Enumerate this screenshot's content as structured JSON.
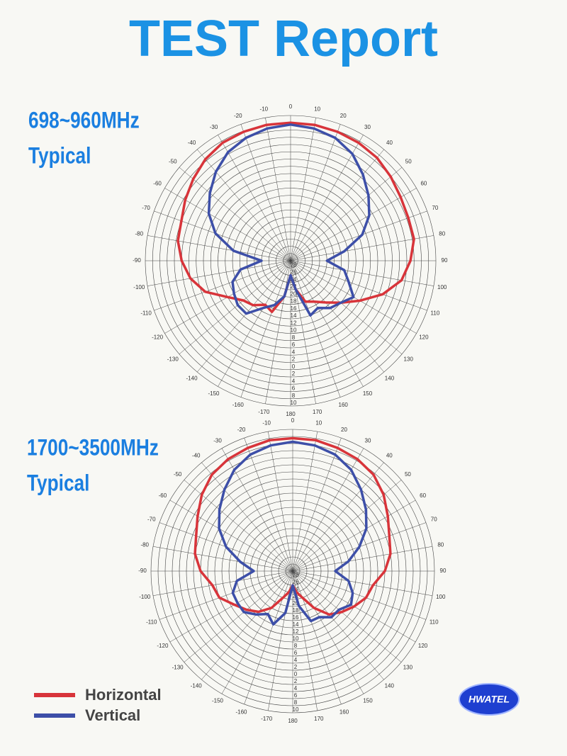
{
  "title": "TEST Report",
  "logo": "HWATEL",
  "chart_data": [
    {
      "type": "polar",
      "title": "698~960MHz",
      "subtitle": "Typical",
      "x": [
        -170,
        -160,
        -150,
        -140,
        -130,
        -120,
        -110,
        -100,
        -90,
        -80,
        -70,
        -60,
        -50,
        -40,
        -30,
        -20,
        -10,
        0,
        10,
        20,
        30,
        40,
        50,
        60,
        70,
        80,
        90,
        100,
        110,
        120,
        130,
        140,
        150,
        160,
        170,
        180
      ],
      "xticks": [
        -170,
        -160,
        -150,
        -140,
        -130,
        -120,
        -110,
        -100,
        -90,
        -80,
        -70,
        -60,
        -50,
        -40,
        -30,
        -20,
        -10,
        0,
        10,
        20,
        30,
        40,
        50,
        60,
        70,
        80,
        90,
        100,
        110,
        120,
        130,
        140,
        150,
        160,
        170,
        180
      ],
      "ylim": [
        -30,
        10
      ],
      "yticks": [
        {
          "value": -28,
          "label": "28"
        },
        {
          "value": -26,
          "label": "26"
        },
        {
          "value": -24,
          "label": "24"
        },
        {
          "value": -22,
          "label": "22"
        },
        {
          "value": -20,
          "label": "20"
        },
        {
          "value": -18,
          "label": "18"
        },
        {
          "value": -16,
          "label": "16"
        },
        {
          "value": -14,
          "label": "14"
        },
        {
          "value": -12,
          "label": "12"
        },
        {
          "value": -10,
          "label": "10"
        },
        {
          "value": -8,
          "label": "8"
        },
        {
          "value": -6,
          "label": "6"
        },
        {
          "value": -4,
          "label": "4"
        },
        {
          "value": -2,
          "label": "2"
        },
        0,
        2,
        4,
        6,
        8,
        10
      ],
      "series": [
        {
          "name": "Horizontal",
          "color": "#d8343a",
          "values": [
            -20,
            -15,
            -16,
            -14,
            -13,
            -10,
            -5,
            -2,
            0,
            1.5,
            2,
            3.5,
            5,
            6.5,
            7.5,
            7.8,
            8,
            8,
            8,
            7.8,
            7.5,
            7,
            6,
            5,
            4.5,
            4.5,
            3,
            1,
            -3,
            -8,
            -12,
            -15,
            -17,
            -18,
            -22,
            -26
          ]
        },
        {
          "name": "Vertical",
          "color": "#3d4fa8",
          "values": [
            -20,
            -17,
            -15,
            -11,
            -11,
            -12,
            -13,
            -16,
            -22,
            -14,
            -8,
            -4,
            -1,
            2,
            4.5,
            6,
            7,
            7.5,
            7,
            6,
            4,
            1,
            -2,
            -5,
            -9,
            -15,
            -20,
            -15,
            -13,
            -10,
            -12,
            -13,
            -15,
            -14,
            -22,
            -26
          ]
        }
      ]
    },
    {
      "type": "polar",
      "title": "1700~3500MHz",
      "subtitle": "Typical",
      "x": [
        -170,
        -160,
        -150,
        -140,
        -130,
        -120,
        -110,
        -100,
        -90,
        -80,
        -70,
        -60,
        -50,
        -40,
        -30,
        -20,
        -10,
        0,
        10,
        20,
        30,
        40,
        50,
        60,
        70,
        80,
        90,
        100,
        110,
        120,
        130,
        140,
        150,
        160,
        170,
        180
      ],
      "xticks": [
        -170,
        -160,
        -150,
        -140,
        -130,
        -120,
        -110,
        -100,
        -90,
        -80,
        -70,
        -60,
        -50,
        -40,
        -30,
        -20,
        -10,
        0,
        10,
        20,
        30,
        40,
        50,
        60,
        70,
        80,
        90,
        100,
        110,
        120,
        130,
        140,
        150,
        160,
        170,
        180
      ],
      "ylim": [
        -30,
        10
      ],
      "yticks": [
        {
          "value": -28,
          "label": "28"
        },
        {
          "value": -26,
          "label": "26"
        },
        {
          "value": -24,
          "label": "24"
        },
        {
          "value": -22,
          "label": "22"
        },
        {
          "value": -20,
          "label": "20"
        },
        {
          "value": -18,
          "label": "18"
        },
        {
          "value": -16,
          "label": "16"
        },
        {
          "value": -14,
          "label": "14"
        },
        {
          "value": -12,
          "label": "12"
        },
        {
          "value": -10,
          "label": "10"
        },
        {
          "value": -8,
          "label": "8"
        },
        {
          "value": -6,
          "label": "6"
        },
        {
          "value": -4,
          "label": "4"
        },
        {
          "value": -2,
          "label": "2"
        },
        0,
        2,
        4,
        6,
        8,
        10
      ],
      "series": [
        {
          "color": "#d8343a",
          "values": [
            -24,
            -22,
            -18,
            -15,
            -13,
            -11,
            -8,
            -7,
            -4,
            -2,
            -1,
            1,
            3.5,
            5.5,
            6.5,
            7,
            7.5,
            7.5,
            7.5,
            7,
            6.5,
            5.5,
            3.5,
            1,
            -1,
            -2,
            -4,
            -7,
            -8,
            -10,
            -12,
            -14,
            -18,
            -22,
            -24,
            -26
          ]
        },
        {
          "color": "#3d4fa8",
          "values": [
            -18,
            -14,
            -16,
            -14,
            -12,
            -12,
            -12,
            -14,
            -19,
            -15,
            -10,
            -6,
            -3,
            0,
            3,
            5,
            6,
            6.5,
            6,
            5,
            3,
            0,
            -3,
            -6,
            -10,
            -14,
            -18,
            -14,
            -12,
            -11,
            -13,
            -13,
            -15,
            -15,
            -20,
            -26
          ]
        }
      ]
    }
  ]
}
